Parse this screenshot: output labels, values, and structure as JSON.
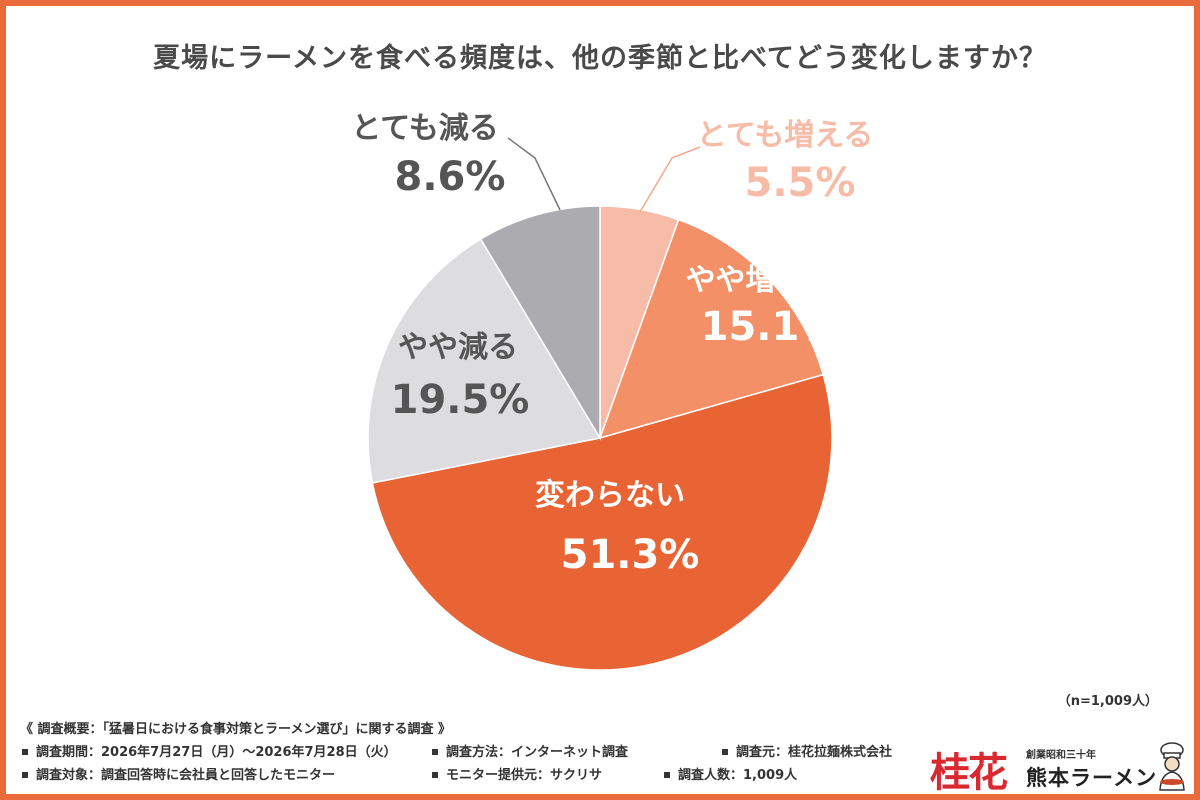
{
  "title": "夏場にラーメンを食べる頻度は、他の季節と比べてどう変化しますか？",
  "chart_data": {
    "type": "pie",
    "title": "夏場にラーメンを食べる頻度は、他の季節と比べてどう変化しますか？",
    "slices": [
      {
        "label": "とても増える",
        "value": 5.5,
        "display": "5.5%",
        "color": "#f7bca7",
        "text_color": "#f7bca7"
      },
      {
        "label": "やや増える",
        "value": 15.1,
        "display": "15.1%",
        "color": "#f39068",
        "text_color": "#ffffff"
      },
      {
        "label": "変わらない",
        "value": 51.3,
        "display": "51.3%",
        "color": "#e96435",
        "text_color": "#ffffff"
      },
      {
        "label": "やや減る",
        "value": 19.5,
        "display": "19.5%",
        "color": "#dddde0",
        "text_color": "#555555"
      },
      {
        "label": "とても減る",
        "value": 8.6,
        "display": "8.6%",
        "color": "#acacb0",
        "text_color": "#555555"
      }
    ],
    "start": "12 o'clock",
    "direction": "clockwise",
    "legend": "none"
  },
  "sample_note": "（n=1,009人）",
  "survey": {
    "header": "《 調査概要：「猛暑日における食事対策とラーメン選び」に関する調査 》",
    "period": "調査期間：2026年7月27日（月）～2026年7月28日（火）",
    "method": "調査方法：インターネット調査",
    "source": "調査元：桂花拉麺株式会社",
    "target": "調査対象：調査回答時に会社員と回答したモニター",
    "provider": "モニター提供元：サクリサ",
    "count": "調査人数：1,009人"
  },
  "logo": {
    "kanji": "桂花",
    "tagline": "創業昭和三十年",
    "name": "熊本ラーメン"
  }
}
